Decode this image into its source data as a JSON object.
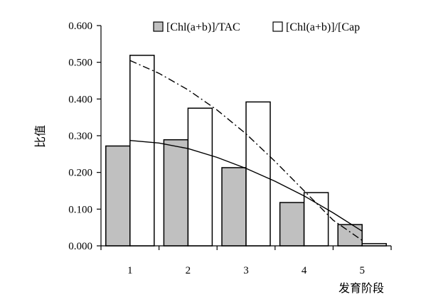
{
  "chart_data": {
    "type": "bar",
    "categories": [
      "1",
      "2",
      "3",
      "4",
      "5"
    ],
    "series": [
      {
        "name": "[Chl(a+b)]/TAC",
        "values": [
          0.272,
          0.289,
          0.213,
          0.118,
          0.058
        ],
        "color": "#c0c0c0"
      },
      {
        "name": "[Chl(a+b)]/[Cap",
        "values": [
          0.519,
          0.375,
          0.392,
          0.145,
          0.006
        ],
        "color": "#ffffff"
      }
    ],
    "trendlines": [
      {
        "of": "[Chl(a+b)]/TAC",
        "style": "solid",
        "x": [
          1,
          1.5,
          2,
          2.5,
          3,
          3.5,
          4,
          4.5,
          5
        ],
        "values": [
          0.287,
          0.28,
          0.265,
          0.241,
          0.211,
          0.176,
          0.136,
          0.09,
          0.04
        ]
      },
      {
        "of": "[Chl(a+b)]/[Cap",
        "style": "dashdot",
        "x": [
          1,
          1.5,
          2,
          2.5,
          3,
          3.5,
          4,
          4.5,
          5
        ],
        "values": [
          0.505,
          0.47,
          0.425,
          0.37,
          0.305,
          0.23,
          0.15,
          0.07,
          0.015
        ]
      }
    ],
    "ylabel": "比值",
    "xlabel": "发育阶段",
    "ylim": [
      0,
      0.6
    ],
    "yticks": [
      "0.000",
      "0.100",
      "0.200",
      "0.300",
      "0.400",
      "0.500",
      "0.600"
    ],
    "grid": false,
    "legend": "top"
  }
}
